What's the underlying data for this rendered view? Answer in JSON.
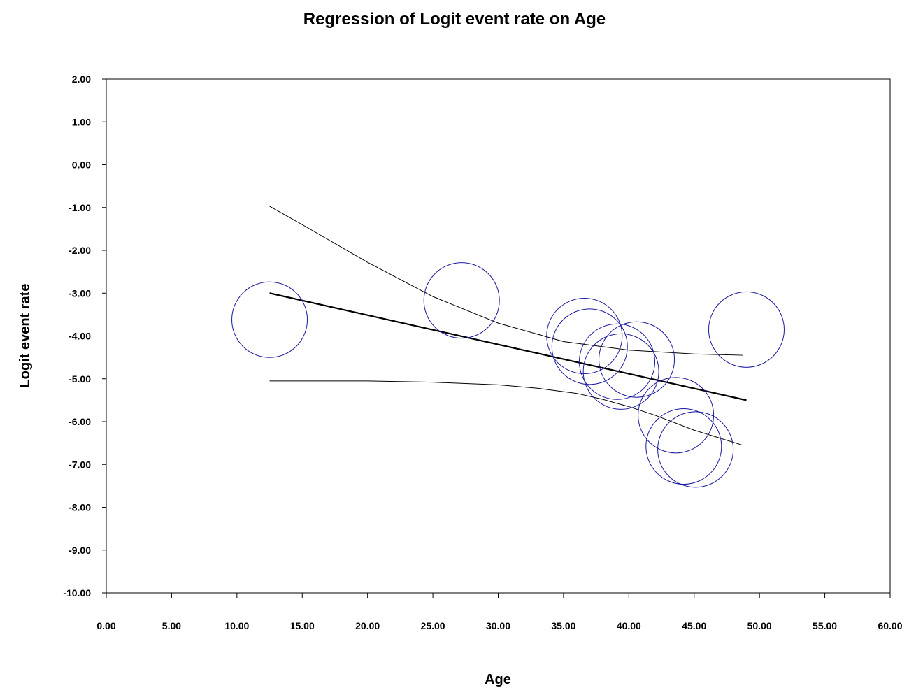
{
  "chart_data": {
    "type": "scatter",
    "title": "Regression of Logit event rate on Age",
    "xlabel": "Age",
    "ylabel": "Logit event rate",
    "xlim": [
      0,
      60
    ],
    "ylim": [
      -10,
      2
    ],
    "x_ticks": [
      "0.00",
      "5.00",
      "10.00",
      "15.00",
      "20.00",
      "25.00",
      "30.00",
      "35.00",
      "40.00",
      "45.00",
      "50.00",
      "55.00",
      "60.00"
    ],
    "y_ticks": [
      "2.00",
      "1.00",
      "0.00",
      "-1.00",
      "-2.00",
      "-3.00",
      "-4.00",
      "-5.00",
      "-6.00",
      "-7.00",
      "-8.00",
      "-9.00",
      "-10.00"
    ],
    "grid": false,
    "points": [
      {
        "x": 12.5,
        "y": -3.62
      },
      {
        "x": 27.2,
        "y": -3.17
      },
      {
        "x": 36.6,
        "y": -4.0
      },
      {
        "x": 37.0,
        "y": -4.25
      },
      {
        "x": 39.1,
        "y": -4.6
      },
      {
        "x": 40.6,
        "y": -4.55
      },
      {
        "x": 39.4,
        "y": -4.83
      },
      {
        "x": 49.0,
        "y": -3.85
      },
      {
        "x": 43.6,
        "y": -5.85
      },
      {
        "x": 44.2,
        "y": -6.58
      },
      {
        "x": 45.1,
        "y": -6.65
      }
    ],
    "regression_line": {
      "x": [
        12.5,
        49.0
      ],
      "y": [
        -3.0,
        -5.5
      ]
    },
    "upper_ci": {
      "x": [
        12.5,
        15,
        20,
        25,
        30,
        35,
        40,
        45,
        48.7
      ],
      "y": [
        -0.97,
        -1.4,
        -2.28,
        -3.08,
        -3.7,
        -4.13,
        -4.33,
        -4.42,
        -4.45
      ]
    },
    "lower_ci": {
      "x": [
        12.5,
        20,
        25,
        30,
        33,
        36,
        38,
        40,
        42,
        45,
        48.7
      ],
      "y": [
        -5.05,
        -5.05,
        -5.08,
        -5.14,
        -5.22,
        -5.34,
        -5.48,
        -5.65,
        -5.85,
        -6.2,
        -6.55
      ]
    },
    "colors": {
      "marker": "#1a1aa0",
      "line": "#000000"
    }
  }
}
